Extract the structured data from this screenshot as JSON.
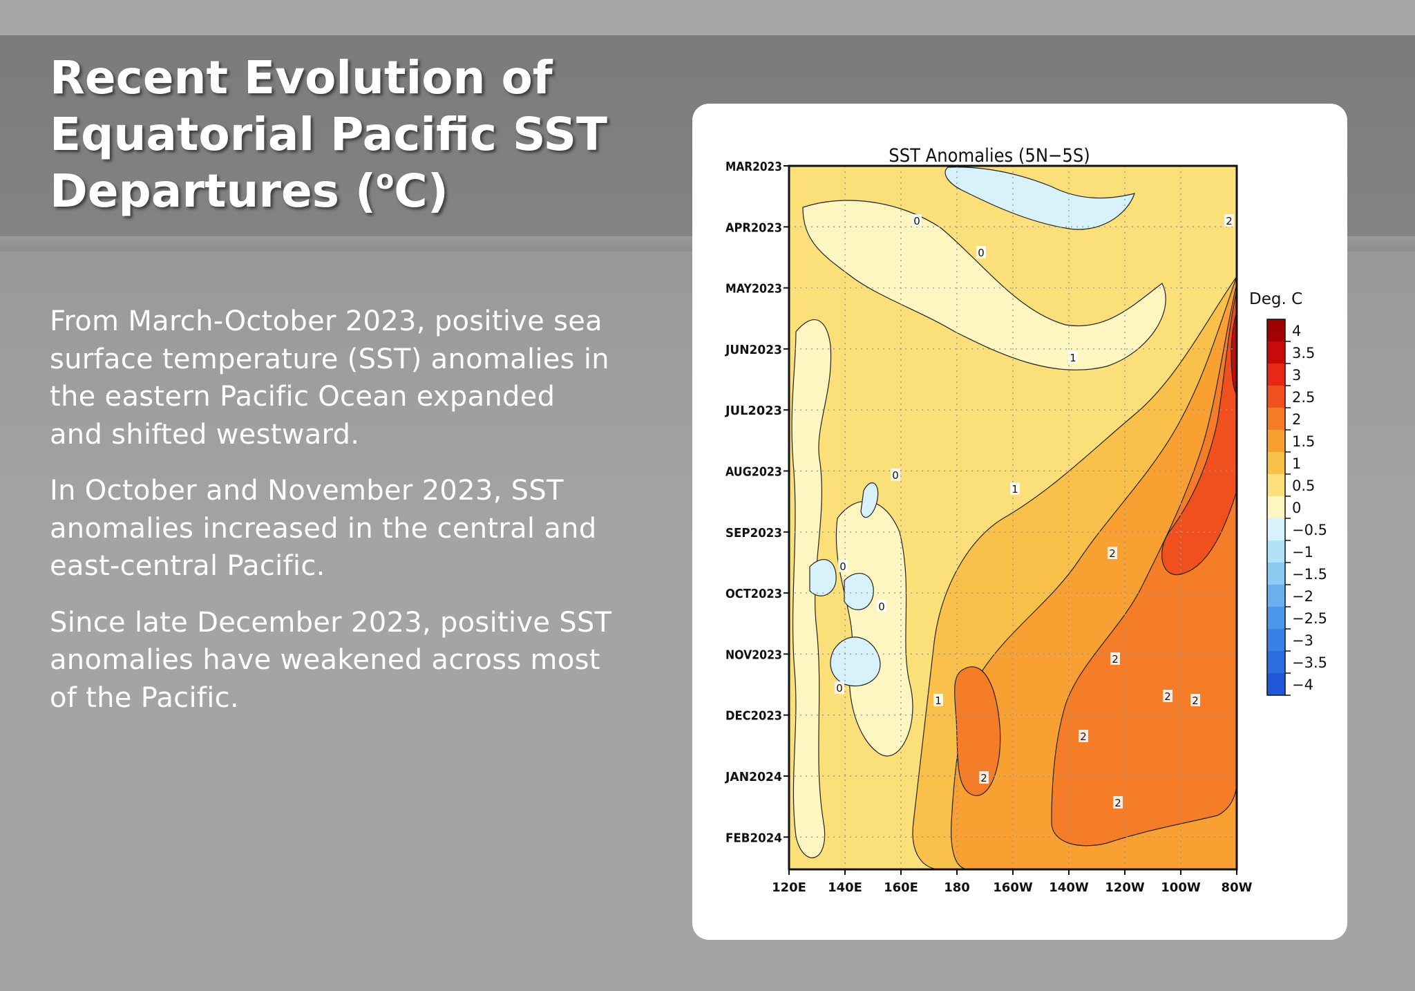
{
  "title_lines": [
    "Recent Evolution of",
    "Equatorial Pacific SST",
    "Departures ("
  ],
  "title_unit": {
    "sup": "o",
    "tail": "C)"
  },
  "paragraphs": [
    [
      "From March-October 2023, positive sea",
      "surface temperature (SST) anomalies in",
      "the eastern Pacific Ocean expanded",
      "and shifted westward."
    ],
    [
      "In October and November 2023, SST",
      "anomalies increased in the central and",
      "east-central Pacific."
    ],
    [
      "Since late December 2023, positive SST",
      "anomalies have weakened across most",
      "of the Pacific."
    ]
  ],
  "figure": {
    "title": "SST Anomalies (5N−5S)",
    "y_labels": [
      "MAR2023",
      "APR2023",
      "MAY2023",
      "JUN2023",
      "JUL2023",
      "AUG2023",
      "SEP2023",
      "OCT2023",
      "NOV2023",
      "DEC2023",
      "JAN2024",
      "FEB2024"
    ],
    "x_labels": [
      "120E",
      "140E",
      "160E",
      "180",
      "160W",
      "140W",
      "120W",
      "100W",
      "80W"
    ],
    "colorbar_title": "Deg. C",
    "colorbar_labels": [
      "4",
      "3.5",
      "3",
      "2.5",
      "2",
      "1.5",
      "1",
      "0.5",
      "0",
      "−0.5",
      "−1",
      "−1.5",
      "−2",
      "−2.5",
      "−3",
      "−3.5",
      "−4"
    ],
    "colorbar_colors": [
      "#a00000",
      "#c80a0a",
      "#e62814",
      "#f0501e",
      "#f57d28",
      "#f8a032",
      "#f9c04a",
      "#fbdf78",
      "#fdf6c0",
      "#d8f2fb",
      "#b2e2f7",
      "#8ccaf2",
      "#6ab0ee",
      "#4c96ea",
      "#3880e6",
      "#2c6ee0",
      "#2058d8"
    ],
    "contour_labels": [
      "0",
      "0",
      "0",
      "0",
      "0",
      "0",
      "1",
      "1",
      "1",
      "2",
      "2",
      "2",
      "2",
      "2",
      "2",
      "2",
      "2"
    ]
  }
}
